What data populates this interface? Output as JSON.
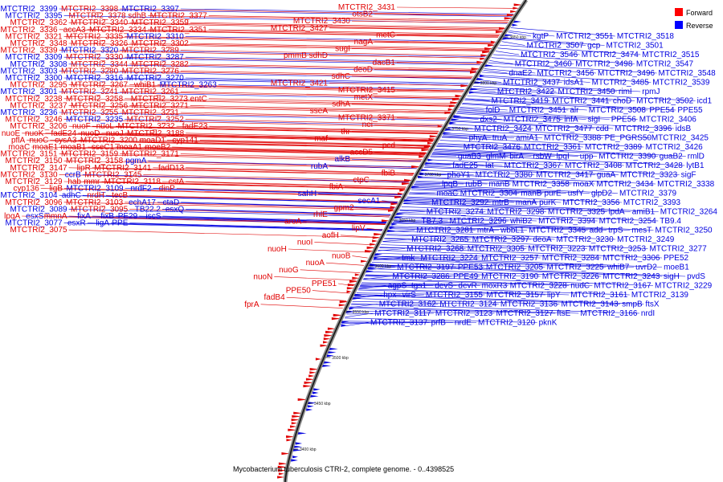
{
  "caption": "Mycobacterium tuberculosis CTRI-2, complete genome. - 0..4398525",
  "legend": {
    "forward": {
      "label": "Forward",
      "color": "#ff0000"
    },
    "reverse": {
      "label": "Reverse",
      "color": "#0000ff"
    }
  },
  "colors": {
    "forward": "#e00000",
    "reverse": "#0000e0",
    "backbone": "#888888"
  },
  "ticks": [
    "3850 kbp",
    "3800 kbp",
    "3750 kbp",
    "3700 kbp",
    "3650 kbp",
    "3600 kbp",
    "3550 kbp",
    "3500 kbp",
    "3450 kbp",
    "3400 kbp"
  ],
  "left_labels": [
    [
      "MTCTRI2_3399",
      "reverse"
    ],
    [
      "MTCTRI2_3398",
      "forward"
    ],
    [
      "MTCTRI2_3397",
      "reverse"
    ],
    [
      "MTCTRI2_3395",
      "reverse"
    ],
    [
      "MTCTRI2_3378 sdhB",
      "forward"
    ],
    [
      "MTCTRI2_3377",
      "forward"
    ],
    [
      "MTCTRI2_3362",
      "forward"
    ],
    [
      "MTCTRI2_3340",
      "forward"
    ],
    [
      "MTCTRI2_3359",
      "forward"
    ],
    [
      "MTCTRI2_3336",
      "forward"
    ],
    [
      "accA3",
      "forward"
    ],
    [
      "MTCTRI2_3334",
      "forward"
    ],
    [
      "MTCTRI2_3351",
      "forward"
    ],
    [
      "MTCTRI2_3321",
      "forward"
    ],
    [
      "MTCTRI2_3335",
      "forward"
    ],
    [
      "MTCTRI2_3310",
      "reverse"
    ],
    [
      "MTCTRI2_3348",
      "forward"
    ],
    [
      "MTCTRI2_3326",
      "forward"
    ],
    [
      "MTCTRI2_3302",
      "forward"
    ],
    [
      "MTCTRI2_3339",
      "forward"
    ],
    [
      "MTCTRI2_3320",
      "reverse"
    ],
    [
      "MTCTRI2_3289",
      "forward"
    ],
    [
      "MTCTRI2_3309",
      "reverse"
    ],
    [
      "MTCTRI2_3330",
      "forward"
    ],
    [
      "MTCTRI2_3287",
      "reverse"
    ],
    [
      "MTCTRI2_3308",
      "reverse"
    ],
    [
      "MTCTRI2_3344",
      "forward"
    ],
    [
      "MTCTRI2_3282",
      "forward"
    ],
    [
      "MTCTRI2_3303",
      "reverse"
    ],
    [
      "MTCTRI2_3280",
      "forward"
    ],
    [
      "MTCTRI2_3276",
      "forward"
    ],
    [
      "MTCTRI2_3300",
      "reverse"
    ],
    [
      "MTCTRI2_3316",
      "reverse"
    ],
    [
      "MTCTRI2_3270",
      "reverse"
    ],
    [
      "MTCTRI2_3295",
      "forward"
    ],
    [
      "MTCTRI2_3267",
      "forward"
    ],
    [
      "whiB1",
      "forward"
    ],
    [
      "MTCTRI2_3263",
      "reverse"
    ],
    [
      "MTCTRI2_3301",
      "reverse"
    ],
    [
      "MTCTRI2_3241",
      "forward"
    ],
    [
      "MTCTRI2_3261",
      "forward"
    ],
    [
      "MTCTRI2_3238",
      "forward"
    ],
    [
      "MTCTRI2_3258",
      "forward"
    ],
    [
      "MTCTRI2_3273 entC",
      "forward"
    ],
    [
      "MTCTRI2_3237",
      "forward"
    ],
    [
      "MTCTRI2_3256",
      "forward"
    ],
    [
      "MTCTRI2_3271",
      "forward"
    ],
    [
      "MTCTRI2_3236",
      "reverse"
    ],
    [
      "MTCTRI2_3255",
      "forward"
    ],
    [
      "MTCTRI2_3231",
      "forward"
    ],
    [
      "MTCTRI2_3246",
      "forward"
    ],
    [
      "MTCTRI2_3235",
      "reverse"
    ],
    [
      "MTCTRI2_3252",
      "forward"
    ],
    [
      "MTCTRI2_3206",
      "forward"
    ],
    [
      "nuoF",
      "forward"
    ],
    [
      "nuoL",
      "forward"
    ],
    [
      "MTCTRI2_3232",
      "forward"
    ],
    [
      "fadE23",
      "forward"
    ],
    [
      "nuoE",
      "forward"
    ],
    [
      "nuoK",
      "forward"
    ],
    [
      "fadE24",
      "forward"
    ],
    [
      "nuoD",
      "forward"
    ],
    [
      "nuoJ",
      "forward"
    ],
    [
      "MTCTRI2_3188",
      "forward"
    ],
    [
      "pflA",
      "forward"
    ],
    [
      "nuoC",
      "forward"
    ],
    [
      "cysA3",
      "forward"
    ],
    [
      "MTCTRI2_3200",
      "forward"
    ],
    [
      "moaD1",
      "forward"
    ],
    [
      "cyp141",
      "forward"
    ],
    [
      "moaC",
      "forward"
    ],
    [
      "moaE1",
      "forward"
    ],
    [
      "moaB1",
      "forward"
    ],
    [
      "sseC1",
      "forward"
    ],
    [
      "moaA1",
      "forward"
    ],
    [
      "moeB2",
      "forward"
    ],
    [
      "MTCTRI2_3151",
      "forward"
    ],
    [
      "MTCTRI2_3159",
      "forward"
    ],
    [
      "MTCTRI2_3171",
      "forward"
    ],
    [
      "MTCTRI2_3150",
      "forward"
    ],
    [
      "MTCTRI2_3158",
      "forward"
    ],
    [
      "pgmA",
      "reverse"
    ],
    [
      "MTCTRI2_3147",
      "forward"
    ],
    [
      "lipR",
      "forward"
    ],
    [
      "MTCTRI2_3141",
      "forward"
    ],
    [
      "fadD13",
      "forward"
    ],
    [
      "MTCTRI2_3130",
      "forward"
    ],
    [
      "ccrB",
      "reverse"
    ],
    [
      "MTCTRI2_3145",
      "forward"
    ],
    [
      "MTCTRI2_3129",
      "forward"
    ],
    [
      "hab",
      "forward"
    ],
    [
      "mmr",
      "forward"
    ],
    [
      "MTCTRI2_3118",
      "forward"
    ],
    [
      "cstA",
      "forward"
    ],
    [
      "cyp136",
      "forward"
    ],
    [
      "ligB",
      "forward"
    ],
    [
      "MTCTRI2_3109",
      "reverse"
    ],
    [
      "nrdF2",
      "reverse"
    ],
    [
      "dinP",
      "forward"
    ],
    [
      "MTCTRI2_3104",
      "reverse"
    ],
    [
      "adhC",
      "reverse"
    ],
    [
      "nrdH",
      "forward"
    ],
    [
      "tecB",
      "forward"
    ],
    [
      "MTCTRI2_3096",
      "forward"
    ],
    [
      "MTCTRI2_3103",
      "forward"
    ],
    [
      "echA17",
      "reverse"
    ],
    [
      "ctaD",
      "reverse"
    ],
    [
      "MTCTRI2_3089",
      "reverse"
    ],
    [
      "MTCTRI2_3095",
      "forward"
    ],
    [
      "TB22.2",
      "reverse"
    ],
    [
      "esxQ",
      "reverse"
    ],
    [
      "lpqA",
      "forward"
    ],
    [
      "esxS",
      "reverse"
    ],
    [
      "mmnA",
      "forward"
    ],
    [
      "fixA",
      "reverse"
    ],
    [
      "fixB",
      "reverse"
    ],
    [
      "PE29",
      "reverse"
    ],
    [
      "iscS",
      "reverse"
    ],
    [
      "MTCTRI2_3077",
      "reverse"
    ],
    [
      "esxR",
      "reverse"
    ],
    [
      "ligA",
      "reverse"
    ],
    [
      "PPE",
      "reverse"
    ],
    [
      "MTCTRI2_3075",
      "forward"
    ]
  ],
  "upper_labels": [
    [
      "MTCTRI2_3431",
      "forward"
    ],
    [
      "otsB2",
      "forward"
    ],
    [
      "MTCTRI2_3430",
      "forward"
    ],
    [
      "MTCTRI2_3427",
      "forward"
    ],
    [
      "metC",
      "forward"
    ],
    [
      "nagA",
      "forward"
    ],
    [
      "sugI",
      "forward"
    ],
    [
      "pmmB sdhD",
      "forward"
    ],
    [
      "dacB1",
      "forward"
    ],
    [
      "deoD",
      "forward"
    ],
    [
      "sdhC",
      "forward"
    ],
    [
      "MTCTRI2_3421",
      "forward"
    ],
    [
      "MTCTRI2_3415",
      "forward"
    ],
    [
      "metX",
      "forward"
    ],
    [
      "sdhA",
      "forward"
    ],
    [
      "sseA",
      "forward"
    ],
    [
      "MTCTRI2_3371",
      "forward"
    ],
    [
      "nei",
      "forward"
    ],
    [
      "thr",
      "forward"
    ],
    [
      "maf",
      "forward"
    ],
    [
      "pcd",
      "forward"
    ],
    [
      "accD5",
      "forward"
    ],
    [
      "alkB",
      "reverse"
    ],
    [
      "rubA",
      "reverse"
    ],
    [
      "fbiB",
      "forward"
    ],
    [
      "ctpC",
      "forward"
    ],
    [
      "fbiA",
      "forward"
    ],
    [
      "sahH",
      "reverse"
    ],
    [
      "secA1",
      "reverse"
    ],
    [
      "gpm2",
      "forward"
    ],
    [
      "rhlE",
      "forward"
    ],
    [
      "aroA",
      "forward"
    ],
    [
      "lipV",
      "forward"
    ],
    [
      "aofH",
      "forward"
    ],
    [
      "nuoI",
      "forward"
    ],
    [
      "nuoH",
      "forward"
    ],
    [
      "nuoB",
      "forward"
    ],
    [
      "nuoA",
      "forward"
    ],
    [
      "nuoG",
      "forward"
    ],
    [
      "nuoN",
      "forward"
    ],
    [
      "PPE51",
      "forward"
    ],
    [
      "PPE50",
      "forward"
    ],
    [
      "fadB4",
      "forward"
    ],
    [
      "fprA",
      "forward"
    ]
  ],
  "right_labels": [
    [
      "kgtP",
      "reverse"
    ],
    [
      "MTCTRI2_3551",
      "reverse"
    ],
    [
      "MTCTRI2_3518",
      "reverse"
    ],
    [
      "MTCTRI2_3507",
      "reverse"
    ],
    [
      "gcp",
      "reverse"
    ],
    [
      "MTCTRI2_3501",
      "reverse"
    ],
    [
      "MTCTRI2_3546",
      "reverse"
    ],
    [
      "MTCTRI2_3474",
      "reverse"
    ],
    [
      "MTCTRI2_3515",
      "reverse"
    ],
    [
      "MTCTRI2_3460",
      "reverse"
    ],
    [
      "MTCTRI2_3498",
      "reverse"
    ],
    [
      "MTCTRI2_3547",
      "reverse"
    ],
    [
      "dnaE2",
      "reverse"
    ],
    [
      "MTCTRI2_3456",
      "reverse"
    ],
    [
      "MTCTRI2_3496",
      "reverse"
    ],
    [
      "MTCTRI2_3548",
      "reverse"
    ],
    [
      "MTCTRI2_3437",
      "reverse"
    ],
    [
      "idsA1",
      "reverse"
    ],
    [
      "MTCTRI2_3485",
      "reverse"
    ],
    [
      "MTCTRI2_3539",
      "reverse"
    ],
    [
      "MTCTRI2_3422",
      "reverse"
    ],
    [
      "MTCTRI2_3450",
      "reverse"
    ],
    [
      "rimI",
      "reverse"
    ],
    [
      "rpmJ",
      "reverse"
    ],
    [
      "MTCTRI2_3419",
      "reverse"
    ],
    [
      "MTCTRI2_3441",
      "reverse"
    ],
    [
      "choD",
      "reverse"
    ],
    [
      "MTCTRI2_3502",
      "reverse"
    ],
    [
      "icd1",
      "reverse"
    ],
    [
      "folD",
      "reverse"
    ],
    [
      "MTCTRI2_3451",
      "reverse"
    ],
    [
      "alr",
      "reverse"
    ],
    [
      "MTCTRI2_3508",
      "reverse"
    ],
    [
      "PPE54",
      "reverse"
    ],
    [
      "PPE55",
      "reverse"
    ],
    [
      "dxs2",
      "reverse"
    ],
    [
      "MTCTRI2_3475",
      "reverse"
    ],
    [
      "infA",
      "reverse"
    ],
    [
      "sigI",
      "reverse"
    ],
    [
      "PPE56",
      "reverse"
    ],
    [
      "MTCTRI2_3406",
      "reverse"
    ],
    [
      "MTCTRI2_3424",
      "reverse"
    ],
    [
      "MTCTRI2_3477",
      "reverse"
    ],
    [
      "cdd",
      "reverse"
    ],
    [
      "MTCTRI2_3396",
      "reverse"
    ],
    [
      "idsB",
      "reverse"
    ],
    [
      "phyA",
      "reverse"
    ],
    [
      "truA",
      "reverse"
    ],
    [
      "amiA1",
      "reverse"
    ],
    [
      "MTCTRI2_3388",
      "reverse"
    ],
    [
      "PE_PGRS50",
      "reverse"
    ],
    [
      "MTCTRI2_3425",
      "reverse"
    ],
    [
      "MTCTRI2_3476",
      "reverse"
    ],
    [
      "MTCTRI2_3361",
      "reverse"
    ],
    [
      "MTCTRI2_3389",
      "reverse"
    ],
    [
      "MTCTRI2_3426",
      "reverse"
    ],
    [
      "guaB3",
      "reverse"
    ],
    [
      "glmM",
      "reverse"
    ],
    [
      "birA",
      "reverse"
    ],
    [
      "rsbW",
      "reverse"
    ],
    [
      "lpqI",
      "reverse"
    ],
    [
      "upp",
      "reverse"
    ],
    [
      "MTCTRI2_3390",
      "reverse"
    ],
    [
      "guaB2",
      "reverse"
    ],
    [
      "rmlD",
      "reverse"
    ],
    [
      "fadE25",
      "reverse"
    ],
    [
      "lat",
      "reverse"
    ],
    [
      "MTCTRI2_3367",
      "reverse"
    ],
    [
      "MTCTRI2_3408",
      "reverse"
    ],
    [
      "MTCTRI2_3428",
      "reverse"
    ],
    [
      "lytB1",
      "reverse"
    ],
    [
      "phoY1",
      "reverse"
    ],
    [
      "MTCTRI2_3380",
      "reverse"
    ],
    [
      "MTCTRI2_3417",
      "reverse"
    ],
    [
      "guaA",
      "reverse"
    ],
    [
      "MTCTRI2_3323",
      "reverse"
    ],
    [
      "sigF",
      "reverse"
    ],
    [
      "lpqB",
      "reverse"
    ],
    [
      "rubB",
      "reverse"
    ],
    [
      "manB",
      "reverse"
    ],
    [
      "MTCTRI2_3358",
      "reverse"
    ],
    [
      "moaX",
      "reverse"
    ],
    [
      "MTCTRI2_3434",
      "reverse"
    ],
    [
      "MTCTRI2_3338",
      "reverse"
    ],
    [
      "moaC",
      "reverse"
    ],
    [
      "MTCTRI2_3304",
      "reverse"
    ],
    [
      "manB",
      "reverse"
    ],
    [
      "purE",
      "reverse"
    ],
    [
      "usfY",
      "reverse"
    ],
    [
      "glpD2",
      "reverse"
    ],
    [
      "MTCTRI2_3379",
      "reverse"
    ],
    [
      "MTCTRI2_3292",
      "reverse"
    ],
    [
      "mtrB",
      "reverse"
    ],
    [
      "manA",
      "reverse"
    ],
    [
      "purK",
      "reverse"
    ],
    [
      "MTCTRI2_3356",
      "reverse"
    ],
    [
      "MTCTRI2_3393",
      "reverse"
    ],
    [
      "MTCTRI2_3274",
      "reverse"
    ],
    [
      "MTCTRI2_3298",
      "reverse"
    ],
    [
      "MTCTRI2_3325",
      "reverse"
    ],
    [
      "lpdA",
      "reverse"
    ],
    [
      "amiB1",
      "reverse"
    ],
    [
      "MTCTRI2_3264",
      "reverse"
    ],
    [
      "TB7.3",
      "reverse"
    ],
    [
      "MTCTRI2_3296",
      "reverse"
    ],
    [
      "whiB2",
      "reverse"
    ],
    [
      "MTCTRI2_3394",
      "reverse"
    ],
    [
      "MTCTRI2_3254",
      "reverse"
    ],
    [
      "TB9.4",
      "reverse"
    ],
    [
      "MTCTRI2_3281",
      "reverse"
    ],
    [
      "mtrA",
      "reverse"
    ],
    [
      "wbbL1",
      "reverse"
    ],
    [
      "MTCTRI2_3345",
      "reverse"
    ],
    [
      "add",
      "reverse"
    ],
    [
      "trpS",
      "reverse"
    ],
    [
      "mesT",
      "reverse"
    ],
    [
      "MTCTRI2_3250",
      "reverse"
    ],
    [
      "MTCTRI2_3265",
      "reverse"
    ],
    [
      "MTCTRI2_3297",
      "reverse"
    ],
    [
      "deoA",
      "reverse"
    ],
    [
      "MTCTRI2_3230",
      "reverse"
    ],
    [
      "MTCTRI2_3249",
      "reverse"
    ],
    [
      "MTCTRI2_3268",
      "reverse"
    ],
    [
      "MTCTRI2_3305",
      "reverse"
    ],
    [
      "MTCTRI2_3223",
      "reverse"
    ],
    [
      "MTCTRI2_3253",
      "reverse"
    ],
    [
      "MTCTRI2_3277",
      "reverse"
    ],
    [
      "tmk",
      "reverse"
    ],
    [
      "MTCTRI2_3224",
      "reverse"
    ],
    [
      "MTCTRI2_3257",
      "reverse"
    ],
    [
      "MTCTRI2_3284",
      "reverse"
    ],
    [
      "MTCTRI2_3306",
      "reverse"
    ],
    [
      "PPE52",
      "reverse"
    ],
    [
      "MTCTRI2_3197",
      "reverse"
    ],
    [
      "PPE53",
      "reverse"
    ],
    [
      "MTCTRI2_3205",
      "reverse"
    ],
    [
      "MTCTRI2_3225",
      "reverse"
    ],
    [
      "whiB7",
      "reverse"
    ],
    [
      "uvrD2",
      "reverse"
    ],
    [
      "moeB1",
      "reverse"
    ],
    [
      "MTCTRI2_3286",
      "reverse"
    ],
    [
      "PPE49",
      "reverse"
    ],
    [
      "MTCTRI2_3190",
      "reverse"
    ],
    [
      "MTCTRI2_3226",
      "reverse"
    ],
    [
      "MTCTRI2_3243",
      "reverse"
    ],
    [
      "sigH",
      "reverse"
    ],
    [
      "pvdS",
      "reverse"
    ],
    [
      "agpS",
      "reverse"
    ],
    [
      "tgs1",
      "reverse"
    ],
    [
      "devS",
      "reverse"
    ],
    [
      "devR",
      "reverse"
    ],
    [
      "moxR3",
      "reverse"
    ],
    [
      "MTCTRI2_3228",
      "reverse"
    ],
    [
      "nudC",
      "reverse"
    ],
    [
      "MTCTRI2_3167",
      "reverse"
    ],
    [
      "MTCTRI2_3229",
      "reverse"
    ],
    [
      "hpx",
      "reverse"
    ],
    [
      "virS",
      "reverse"
    ],
    [
      "MTCTRI2_3155",
      "reverse"
    ],
    [
      "MTCTRI2_3157",
      "reverse"
    ],
    [
      "lipY",
      "reverse"
    ],
    [
      "MTCTRI2_3161",
      "reverse"
    ],
    [
      "MTCTRI2_3139",
      "reverse"
    ],
    [
      "MTCTRI2_3162",
      "reverse"
    ],
    [
      "MTCTRI2_3124",
      "reverse"
    ],
    [
      "MTCTRI2_3136",
      "reverse"
    ],
    [
      "MTCTRI2_3143",
      "reverse"
    ],
    [
      "smpB",
      "reverse"
    ],
    [
      "ftsX",
      "reverse"
    ],
    [
      "MTCTRI2_3117",
      "reverse"
    ],
    [
      "MTCTRI2_3123",
      "reverse"
    ],
    [
      "MTCTRI2_3127",
      "reverse"
    ],
    [
      "ftsE",
      "reverse"
    ],
    [
      "MTCTRI2_3166",
      "reverse"
    ],
    [
      "nrdI",
      "reverse"
    ],
    [
      "MTCTRI2_3137",
      "reverse"
    ],
    [
      "prfB",
      "reverse"
    ],
    [
      "nrdE",
      "reverse"
    ],
    [
      "MTCTRI2_3120",
      "reverse"
    ],
    [
      "pknK",
      "reverse"
    ]
  ]
}
